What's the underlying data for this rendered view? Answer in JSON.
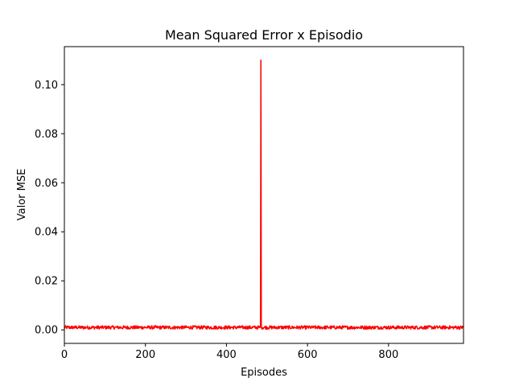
{
  "chart_data": {
    "type": "line",
    "title": "Mean Squared Error x Episodio",
    "xlabel": "Episodes",
    "ylabel": "Valor MSE",
    "xlim": [
      0,
      985
    ],
    "ylim": [
      -0.0055,
      0.1155
    ],
    "xticks": [
      0,
      200,
      400,
      600,
      800
    ],
    "yticks": [
      0.0,
      0.02,
      0.04,
      0.06,
      0.08,
      0.1
    ],
    "xtick_labels": [
      "0",
      "200",
      "400",
      "600",
      "800"
    ],
    "ytick_labels": [
      "0.00",
      "0.02",
      "0.04",
      "0.06",
      "0.08",
      "0.10"
    ],
    "grid": false,
    "series": [
      {
        "color": "#ff0000",
        "baseline_mean": 0.001,
        "baseline_noise": 0.0007,
        "spike": {
          "x": 485,
          "y": 0.11
        },
        "n_points": 985
      }
    ]
  }
}
